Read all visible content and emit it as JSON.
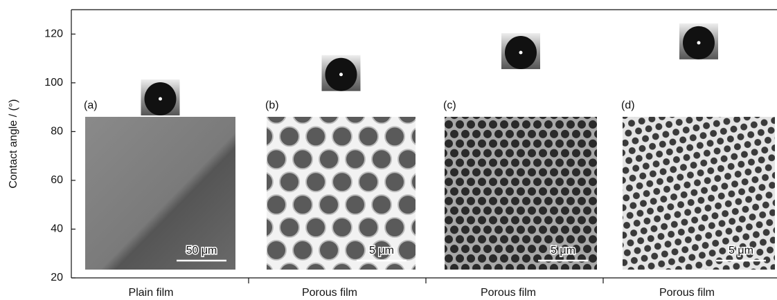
{
  "chart_data": {
    "type": "scatter",
    "y_label": "Contact angle / (°)",
    "categories": [
      "Plain film",
      "Porous film",
      "Porous film",
      "Porous film"
    ],
    "values": [
      94,
      104,
      113,
      117
    ],
    "panel_labels": [
      "(a)",
      "(b)",
      "(c)",
      "(d)"
    ],
    "scale_bars": [
      "50 μm",
      "5 μm",
      "5 μm",
      "5 μm"
    ],
    "ylim": [
      20,
      130
    ],
    "yticks": [
      20,
      40,
      60,
      80,
      100,
      120
    ]
  }
}
